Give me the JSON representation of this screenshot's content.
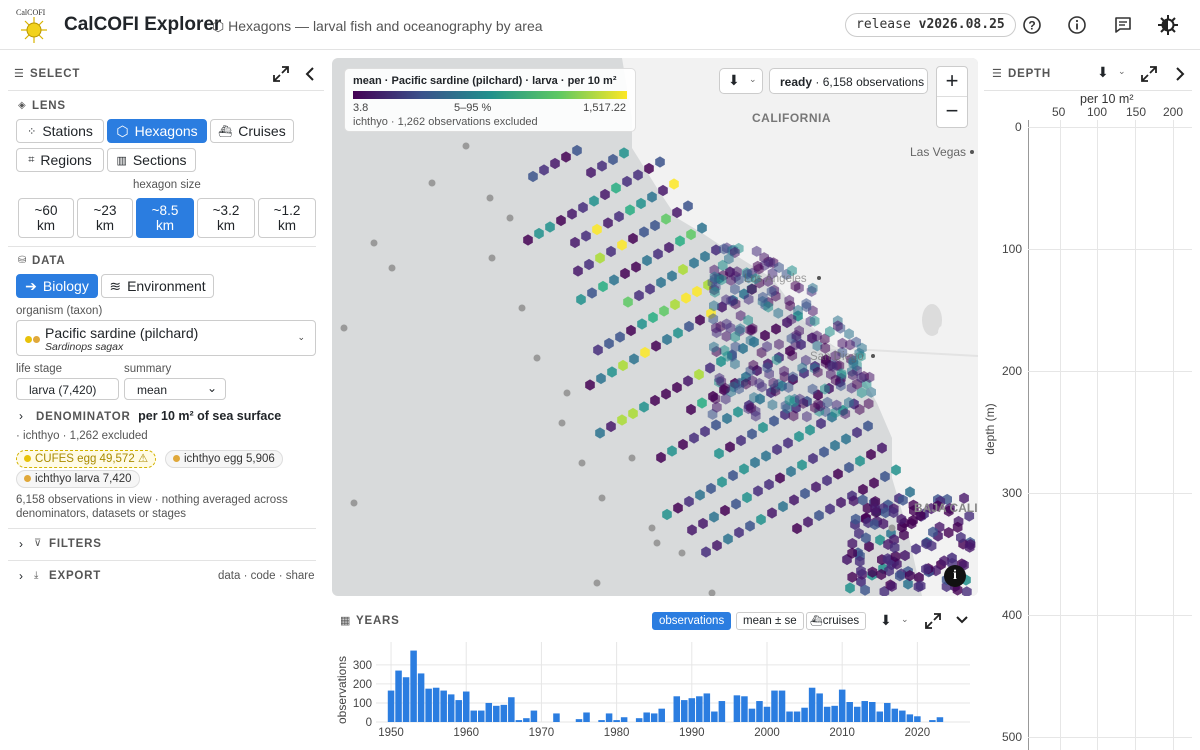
{
  "header": {
    "logo_text": "CalCOFI",
    "title": "CalCOFI Explorer",
    "subtitle": "Hexagons — larval fish and oceanography by area",
    "release_label": "release",
    "release_version": "v2026.08.25",
    "icons": [
      "help-icon",
      "info-icon",
      "feedback-icon",
      "theme-icon"
    ]
  },
  "left": {
    "select_label": "SELECT",
    "lens_label": "LENS",
    "lens_buttons": [
      "Stations",
      "Hexagons",
      "Cruises",
      "Regions",
      "Sections"
    ],
    "lens_selected": "Hexagons",
    "hex_size_label": "hexagon size",
    "hex_sizes": [
      {
        "value": "~60",
        "unit": "km"
      },
      {
        "value": "~23",
        "unit": "km"
      },
      {
        "value": "~8.5",
        "unit": "km"
      },
      {
        "value": "~3.2",
        "unit": "km"
      },
      {
        "value": "~1.2",
        "unit": "km"
      }
    ],
    "hex_size_selected": "~8.5",
    "data_label": "DATA",
    "data_buttons": [
      "Biology",
      "Environment"
    ],
    "data_selected": "Biology",
    "organism_label": "organism (taxon)",
    "organism_common": "Pacific sardine (pilchard)",
    "organism_sci": "Sardinops sagax",
    "life_stage_label": "life stage",
    "life_stage_value": "larva (7,420)",
    "summary_label": "summary",
    "summary_value": "mean",
    "denominator_label": "DENOMINATOR",
    "denominator_value": "per 10 m² of sea surface",
    "excluded_text": "· ichthyo · 1,262 excluded",
    "chips": [
      {
        "label": "CUFES egg 49,572 ⚠",
        "color": "#e8c20a"
      },
      {
        "label": "ichthyo egg 5,906",
        "color": "#e0a83a"
      },
      {
        "label": "ichthyo larva 7,420",
        "color": "#e0a83a"
      }
    ],
    "note": "6,158 observations in view · nothing averaged across denominators, datasets or stages",
    "filters_label": "FILTERS",
    "export_label": "EXPORT",
    "export_links": "data · code · share"
  },
  "map": {
    "legend_title": "mean · Pacific sardine (pilchard) · larva · per 10 m²",
    "legend_min": "3.8",
    "legend_mid": "5–95 %",
    "legend_max": "1,517.22",
    "legend_note": "ichthyo · 1,262 observations excluded",
    "status_ready": "ready",
    "status_count": "· 6,158 observations",
    "place_labels": [
      "CALIFORNIA",
      "Las Vegas",
      "Los Angeles",
      "San Diego",
      "BAJA CALIF"
    ],
    "zoom_in": "+",
    "zoom_out": "−",
    "colors": {
      "low": "#440154",
      "mid": "#21908c",
      "high": "#fde725"
    }
  },
  "years": {
    "label": "YEARS",
    "toggles": [
      "observations",
      "mean ± se",
      "cruises"
    ],
    "toggle_selected": "observations"
  },
  "depth": {
    "label": "DEPTH",
    "x_axis_label": "per 10 m²",
    "x_ticks": [
      "50",
      "100",
      "150",
      "200"
    ],
    "y_axis_label": "depth (m)",
    "y_ticks": [
      "0",
      "100",
      "200",
      "300",
      "400",
      "500"
    ]
  },
  "chart_data": {
    "type": "bar",
    "title": "",
    "xlabel": "",
    "ylabel": "observations",
    "ylim": [
      0,
      420
    ],
    "x_ticks": [
      1950,
      1960,
      1970,
      1980,
      1990,
      2000,
      2010,
      2020
    ],
    "y_ticks": [
      0,
      100,
      200,
      300
    ],
    "x": [
      1950,
      1951,
      1952,
      1953,
      1954,
      1955,
      1956,
      1957,
      1958,
      1959,
      1960,
      1961,
      1962,
      1963,
      1964,
      1965,
      1966,
      1967,
      1968,
      1969,
      1970,
      1971,
      1972,
      1973,
      1974,
      1975,
      1976,
      1977,
      1978,
      1979,
      1980,
      1981,
      1982,
      1983,
      1984,
      1985,
      1986,
      1987,
      1988,
      1989,
      1990,
      1991,
      1992,
      1993,
      1994,
      1995,
      1996,
      1997,
      1998,
      1999,
      2000,
      2001,
      2002,
      2003,
      2004,
      2005,
      2006,
      2007,
      2008,
      2009,
      2010,
      2011,
      2012,
      2013,
      2014,
      2015,
      2016,
      2017,
      2018,
      2019,
      2020,
      2021,
      2022,
      2023
    ],
    "values": [
      165,
      270,
      235,
      375,
      255,
      175,
      180,
      165,
      145,
      115,
      160,
      60,
      60,
      100,
      85,
      90,
      130,
      10,
      20,
      60,
      0,
      0,
      45,
      0,
      0,
      15,
      50,
      0,
      10,
      45,
      10,
      25,
      0,
      20,
      50,
      45,
      70,
      0,
      135,
      115,
      125,
      135,
      150,
      55,
      110,
      0,
      140,
      135,
      70,
      110,
      80,
      165,
      165,
      55,
      55,
      75,
      180,
      150,
      80,
      85,
      170,
      105,
      80,
      110,
      105,
      55,
      100,
      70,
      60,
      40,
      30,
      0,
      10,
      25
    ]
  }
}
